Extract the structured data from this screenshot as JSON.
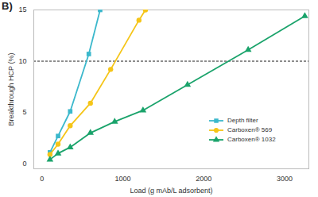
{
  "chart_data": {
    "type": "line",
    "title": "B)",
    "x_label": "Load (g mAb/L adsorbent)",
    "y_label": "Breakthrough HCP (%)",
    "xlim": [
      -100,
      3300
    ],
    "xticks": [
      0,
      1000,
      2000,
      3000
    ],
    "ylim": [
      -0.5,
      15
    ],
    "yticks": [
      0,
      5,
      10,
      15
    ],
    "grid": false,
    "legend": "lower right",
    "reference_line": {
      "y": 10,
      "line_style": "dashed",
      "color": "#222222"
    },
    "series": [
      {
        "name": "Depth filter",
        "color": "#3bb8cc",
        "marker": "square",
        "x": [
          100,
          200,
          350,
          580,
          720
        ],
        "values": [
          1.1,
          2.7,
          5.1,
          10.7,
          15
        ]
      },
      {
        "name": "Carboxen® 569",
        "color": "#f5c518",
        "marker": "circle",
        "x": [
          100,
          200,
          350,
          600,
          850,
          1200,
          1280
        ],
        "values": [
          0.9,
          1.9,
          3.7,
          5.9,
          9.2,
          14.0,
          15
        ]
      },
      {
        "name": "Carboxen® 1032",
        "color": "#1aa36b",
        "marker": "triangle",
        "x": [
          100,
          200,
          350,
          600,
          900,
          1250,
          1800,
          2550,
          3250
        ],
        "values": [
          0.4,
          1.0,
          1.6,
          3.0,
          4.1,
          5.2,
          7.7,
          11.1,
          14.4
        ]
      }
    ]
  }
}
